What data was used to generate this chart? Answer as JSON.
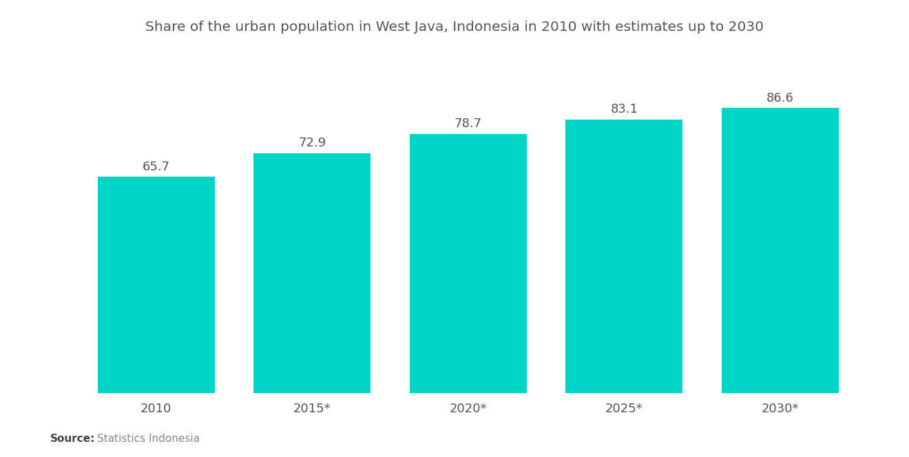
{
  "title": "Share of the urban population in West Java, Indonesia in 2010 with estimates up to 2030",
  "categories": [
    "2010",
    "2015*",
    "2020*",
    "2025*",
    "2030*"
  ],
  "values": [
    65.7,
    72.9,
    78.7,
    83.1,
    86.6
  ],
  "bar_color": "#00D4C8",
  "value_label_color": "#555555",
  "title_color": "#555555",
  "source_bold": "Source:",
  "source_text": "Statistics Indonesia",
  "background_color": "#ffffff",
  "ylim": [
    0,
    100
  ],
  "bar_width": 0.75,
  "title_fontsize": 14.5,
  "label_fontsize": 13,
  "tick_fontsize": 13,
  "source_fontsize": 11
}
